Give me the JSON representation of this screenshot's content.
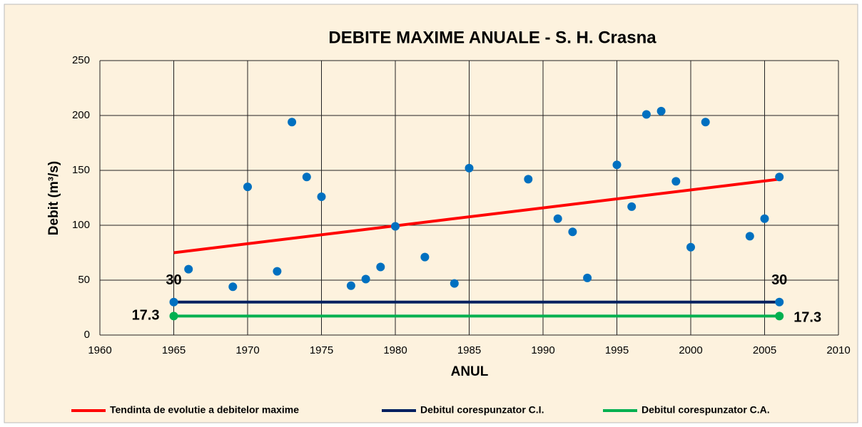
{
  "chart_data": {
    "type": "scatter",
    "title": "DEBITE MAXIME ANUALE - S. H. Crasna",
    "x_label": "ANUL",
    "y_label": "Debit (m³/s)",
    "xlim": [
      1960,
      2010
    ],
    "xticks": [
      1960,
      1965,
      1970,
      1975,
      1980,
      1985,
      1990,
      1995,
      2000,
      2005,
      2010
    ],
    "ylim": [
      0,
      250
    ],
    "yticks": [
      0,
      50,
      100,
      150,
      200,
      250
    ],
    "grid": true,
    "legend": "bottom",
    "points": {
      "color": "#0070c0",
      "x": [
        1966,
        1969,
        1970,
        1972,
        1973,
        1974,
        1975,
        1977,
        1978,
        1979,
        1980,
        1982,
        1984,
        1985,
        1989,
        1991,
        1992,
        1993,
        1995,
        1996,
        1997,
        1998,
        1999,
        2000,
        2001,
        2004,
        2005,
        2006
      ],
      "values": [
        60,
        44,
        135,
        58,
        194,
        144,
        126,
        45,
        51,
        62,
        99,
        71,
        47,
        152,
        142,
        106,
        94,
        52,
        155,
        117,
        201,
        204,
        140,
        80,
        194,
        90,
        106,
        144
      ]
    },
    "series": [
      {
        "name": "Tendinta de evolutie a debitelor maxime",
        "color": "#ff0000",
        "x": [
          1965,
          2006
        ],
        "values": [
          75,
          142
        ]
      },
      {
        "name": "Debitul corespunzator C.I.",
        "color": "#002060",
        "marker_color": "#0070c0",
        "x": [
          1965,
          2006
        ],
        "values": [
          30,
          30
        ],
        "data_labels": true
      },
      {
        "name": "Debitul corespunzator C.A.",
        "color": "#00b050",
        "marker_color": "#00b050",
        "x": [
          1965,
          2006
        ],
        "values": [
          17.3,
          17.3
        ],
        "data_labels": true
      }
    ]
  }
}
